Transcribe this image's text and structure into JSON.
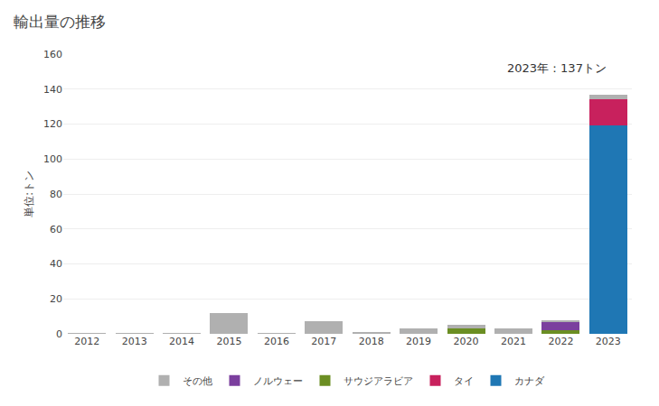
{
  "chart_data": {
    "type": "bar",
    "stacked": true,
    "title": "輸出量の推移",
    "ylabel": "単位:トン",
    "annotation": "2023年：137トン",
    "categories": [
      "2012",
      "2013",
      "2014",
      "2015",
      "2016",
      "2017",
      "2018",
      "2019",
      "2020",
      "2021",
      "2022",
      "2023"
    ],
    "series": [
      {
        "name": "カナダ",
        "color": "#1f77b4",
        "values": [
          0,
          0,
          0,
          0,
          0,
          0,
          0,
          0,
          0,
          0,
          0,
          119
        ]
      },
      {
        "name": "タイ",
        "color": "#c8215d",
        "values": [
          0,
          0,
          0,
          0,
          0,
          0,
          0,
          0,
          0,
          0,
          0,
          15
        ]
      },
      {
        "name": "サウジアラビア",
        "color": "#6b8e23",
        "values": [
          0,
          0,
          0,
          0,
          0,
          0,
          0,
          0,
          3,
          0,
          2,
          0
        ]
      },
      {
        "name": "ノルウェー",
        "color": "#7b3f9e",
        "values": [
          0,
          0,
          0,
          0,
          0,
          0,
          0,
          0,
          0,
          0,
          5,
          0
        ]
      },
      {
        "name": "その他",
        "color": "#b0b0b0",
        "values": [
          0.5,
          0.5,
          0.5,
          12,
          0.5,
          7,
          1,
          3,
          2,
          3,
          1,
          3
        ]
      }
    ],
    "ylim": [
      0,
      160
    ],
    "yticks": [
      0,
      20,
      40,
      60,
      80,
      100,
      120,
      140,
      160
    ],
    "grid": true,
    "legend": "bottom"
  }
}
